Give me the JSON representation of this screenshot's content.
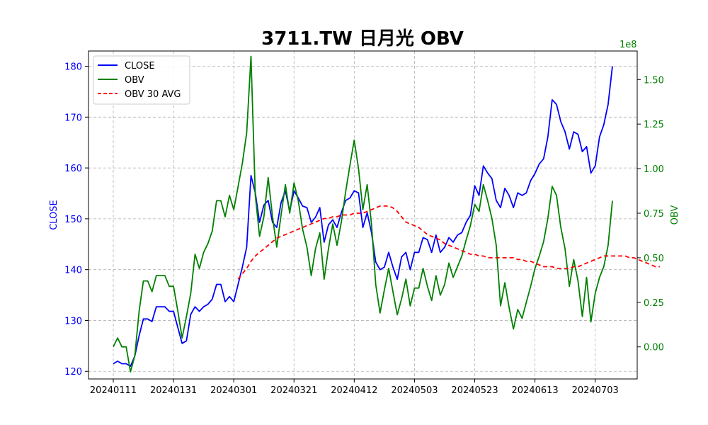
{
  "colors": {
    "close": "#0000ff",
    "obv": "#008000",
    "obv_avg": "#ff0000",
    "grid": "#b0b0b0",
    "axis": "#000000"
  },
  "chart_data": {
    "type": "line",
    "title": "3711.TW 日月光 OBV",
    "grid": true,
    "legend_position": "top-left",
    "x_tick_labels": [
      "20240111",
      "20240131",
      "20240301",
      "20240321",
      "20240412",
      "20240503",
      "20240523",
      "20240613",
      "20240703"
    ],
    "x_tick_indices": [
      0,
      14,
      28,
      42,
      56,
      70,
      84,
      98,
      112
    ],
    "y_left": {
      "label": "CLOSE",
      "range": [
        118.5,
        183
      ],
      "ticks": [
        120,
        130,
        140,
        150,
        160,
        170,
        180
      ]
    },
    "y_right": {
      "label": "OBV",
      "offset_text": "1e8",
      "range": [
        -0.18,
        1.66
      ],
      "ticks": [
        0,
        0.25,
        0.5,
        0.75,
        1.0,
        1.25,
        1.5
      ],
      "tick_labels": [
        "0.00",
        "0.25",
        "0.50",
        "0.75",
        "1.00",
        "1.25",
        "1.50"
      ]
    },
    "series": [
      {
        "name": "CLOSE",
        "axis": "left",
        "values": [
          121.5,
          122,
          121.5,
          121.5,
          121,
          123,
          127,
          130.3,
          130.3,
          129.8,
          132.7,
          132.7,
          132.7,
          131.8,
          131.8,
          128.6,
          125.5,
          126,
          131.2,
          132.7,
          131.8,
          132.7,
          133.2,
          134.2,
          137.1,
          137.1,
          133.7,
          134.7,
          133.7,
          137.1,
          140.5,
          144.4,
          158.5,
          155.1,
          149.3,
          152.7,
          153.6,
          149.3,
          148.3,
          153.2,
          155.5,
          151.5,
          155.5,
          154.1,
          152.5,
          152.2,
          149.3,
          150.3,
          152.2,
          145.4,
          148.8,
          149.8,
          148.3,
          151.2,
          153.6,
          154.1,
          155.5,
          155.1,
          148.3,
          151.2,
          147.3,
          141.5,
          140,
          140.5,
          143.4,
          140.5,
          138.1,
          142.5,
          143.4,
          140,
          143.4,
          143.4,
          146.3,
          145.9,
          143.4,
          146.8,
          143.4,
          144.4,
          146.3,
          145.4,
          146.8,
          147.3,
          149.3,
          150.7,
          156.5,
          154.6,
          160.4,
          159,
          157.9,
          153.6,
          152.2,
          156,
          154.6,
          152.2,
          155.1,
          154.6,
          155.1,
          157.5,
          158.9,
          160.8,
          161.8,
          166.1,
          173.4,
          172.5,
          169.1,
          167.1,
          163.7,
          167.1,
          166.6,
          163.2,
          164.2,
          159,
          160.4,
          166.1,
          168.5,
          172.5,
          180
        ]
      },
      {
        "name": "OBV",
        "axis": "right",
        "values": [
          0,
          0.05,
          0,
          0,
          -0.14,
          -0.05,
          0.2,
          0.37,
          0.37,
          0.31,
          0.4,
          0.4,
          0.4,
          0.34,
          0.34,
          0.2,
          0.05,
          0.17,
          0.3,
          0.52,
          0.44,
          0.53,
          0.58,
          0.65,
          0.82,
          0.82,
          0.73,
          0.85,
          0.77,
          0.9,
          1.03,
          1.2,
          1.63,
          0.85,
          0.62,
          0.73,
          0.95,
          0.73,
          0.56,
          0.74,
          0.91,
          0.75,
          0.92,
          0.82,
          0.66,
          0.56,
          0.4,
          0.55,
          0.64,
          0.38,
          0.55,
          0.69,
          0.57,
          0.7,
          0.87,
          1.02,
          1.16,
          1.0,
          0.77,
          0.91,
          0.69,
          0.35,
          0.19,
          0.32,
          0.44,
          0.31,
          0.18,
          0.27,
          0.38,
          0.23,
          0.33,
          0.33,
          0.44,
          0.34,
          0.26,
          0.4,
          0.29,
          0.35,
          0.47,
          0.39,
          0.45,
          0.51,
          0.6,
          0.68,
          0.8,
          0.76,
          0.91,
          0.82,
          0.72,
          0.57,
          0.23,
          0.36,
          0.22,
          0.1,
          0.21,
          0.16,
          0.25,
          0.34,
          0.44,
          0.51,
          0.59,
          0.72,
          0.9,
          0.85,
          0.67,
          0.55,
          0.34,
          0.49,
          0.37,
          0.17,
          0.39,
          0.14,
          0.3,
          0.39,
          0.45,
          0.57,
          0.82
        ]
      },
      {
        "name": "OBV 30 AVG",
        "axis": "right",
        "style": "dashed",
        "start_index": 29,
        "values": [
          0.38,
          0.41,
          0.44,
          0.48,
          0.51,
          0.53,
          0.55,
          0.57,
          0.59,
          0.61,
          0.62,
          0.63,
          0.64,
          0.65,
          0.66,
          0.67,
          0.68,
          0.69,
          0.7,
          0.71,
          0.72,
          0.72,
          0.73,
          0.73,
          0.74,
          0.74,
          0.74,
          0.75,
          0.75,
          0.75,
          0.76,
          0.77,
          0.78,
          0.79,
          0.79,
          0.79,
          0.78,
          0.76,
          0.73,
          0.7,
          0.69,
          0.68,
          0.67,
          0.65,
          0.63,
          0.62,
          0.61,
          0.6,
          0.58,
          0.57,
          0.56,
          0.55,
          0.54,
          0.53,
          0.52,
          0.52,
          0.51,
          0.51,
          0.5,
          0.5,
          0.5,
          0.5,
          0.5,
          0.5,
          0.5,
          0.49,
          0.49,
          0.48,
          0.48,
          0.47,
          0.46,
          0.45,
          0.45,
          0.45,
          0.44,
          0.44,
          0.44,
          0.44,
          0.45,
          0.45,
          0.46,
          0.47,
          0.48,
          0.49,
          0.5,
          0.51,
          0.51,
          0.51,
          0.51,
          0.51,
          0.51,
          0.5,
          0.5,
          0.49,
          0.48,
          0.47,
          0.46,
          0.45,
          0.45
        ]
      }
    ]
  }
}
